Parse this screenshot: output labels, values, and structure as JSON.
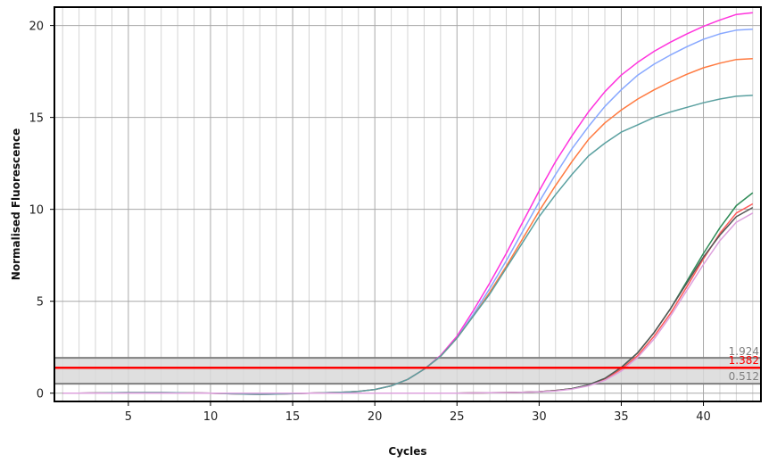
{
  "chart_data": {
    "type": "line",
    "xlabel": "Cycles",
    "ylabel": "Normalised Fluorescence",
    "xlim": [
      0.5,
      43.5
    ],
    "ylim": [
      -0.45,
      21
    ],
    "x_ticks": [
      5,
      10,
      15,
      20,
      25,
      30,
      35,
      40
    ],
    "y_ticks": [
      0,
      5,
      10,
      15,
      20
    ],
    "grid": true,
    "threshold_band": {
      "upper": {
        "value": 1.924,
        "label": "1.924",
        "color": "#7f7f7f"
      },
      "threshold": {
        "value": 1.382,
        "label": "1.382",
        "color": "#ff0000"
      },
      "lower": {
        "value": 0.512,
        "label": "0.512",
        "color": "#7f7f7f"
      },
      "band_fill": "#d9d9d9"
    },
    "x": [
      1,
      2,
      3,
      4,
      5,
      6,
      7,
      8,
      9,
      10,
      11,
      12,
      13,
      14,
      15,
      16,
      17,
      18,
      19,
      20,
      21,
      22,
      23,
      24,
      25,
      26,
      27,
      28,
      29,
      30,
      31,
      32,
      33,
      34,
      35,
      36,
      37,
      38,
      39,
      40,
      41,
      42,
      43
    ],
    "series": [
      {
        "color": "#ff33dd",
        "values": [
          0.0,
          0.0,
          0.01,
          0.02,
          0.03,
          0.03,
          0.03,
          0.02,
          0.01,
          0.0,
          -0.03,
          -0.05,
          -0.06,
          -0.05,
          -0.03,
          0.0,
          0.02,
          0.05,
          0.1,
          0.2,
          0.4,
          0.75,
          1.3,
          2.05,
          3.1,
          4.5,
          6.0,
          7.6,
          9.3,
          11.0,
          12.6,
          14.0,
          15.3,
          16.4,
          17.3,
          18.0,
          18.6,
          19.1,
          19.55,
          19.95,
          20.3,
          20.6,
          20.7
        ]
      },
      {
        "color": "#88a8ff",
        "values": [
          0.0,
          0.0,
          0.01,
          0.02,
          0.03,
          0.03,
          0.03,
          0.02,
          0.01,
          0.0,
          -0.03,
          -0.05,
          -0.06,
          -0.05,
          -0.03,
          0.0,
          0.02,
          0.05,
          0.1,
          0.2,
          0.4,
          0.75,
          1.3,
          2.0,
          3.0,
          4.3,
          5.7,
          7.2,
          8.8,
          10.4,
          11.9,
          13.3,
          14.5,
          15.6,
          16.5,
          17.3,
          17.9,
          18.4,
          18.85,
          19.25,
          19.55,
          19.75,
          19.8
        ]
      },
      {
        "color": "#ff7a40",
        "values": [
          0.0,
          0.0,
          0.01,
          0.02,
          0.03,
          0.03,
          0.03,
          0.02,
          0.01,
          0.0,
          -0.03,
          -0.05,
          -0.06,
          -0.05,
          -0.03,
          0.0,
          0.02,
          0.05,
          0.1,
          0.2,
          0.4,
          0.75,
          1.3,
          2.0,
          3.0,
          4.2,
          5.5,
          6.9,
          8.4,
          9.9,
          11.3,
          12.6,
          13.8,
          14.7,
          15.4,
          16.0,
          16.5,
          16.95,
          17.35,
          17.7,
          17.95,
          18.15,
          18.2
        ]
      },
      {
        "color": "#5aa0a0",
        "values": [
          0.0,
          0.0,
          0.01,
          0.02,
          0.03,
          0.03,
          0.03,
          0.02,
          0.01,
          0.0,
          -0.03,
          -0.05,
          -0.06,
          -0.05,
          -0.03,
          0.0,
          0.02,
          0.05,
          0.1,
          0.2,
          0.4,
          0.75,
          1.3,
          2.0,
          3.0,
          4.2,
          5.4,
          6.8,
          8.2,
          9.6,
          10.8,
          11.9,
          12.9,
          13.6,
          14.2,
          14.6,
          15.0,
          15.3,
          15.55,
          15.8,
          16.0,
          16.15,
          16.2
        ]
      },
      {
        "color": "#2e8b57",
        "values": [
          0.0,
          0.0,
          0.0,
          0.0,
          0.0,
          0.0,
          0.0,
          0.0,
          0.0,
          0.0,
          0.0,
          0.0,
          0.0,
          0.0,
          0.0,
          0.0,
          0.0,
          0.0,
          0.0,
          0.0,
          0.0,
          0.0,
          0.0,
          0.0,
          0.0,
          0.01,
          0.02,
          0.03,
          0.05,
          0.08,
          0.14,
          0.25,
          0.45,
          0.8,
          1.4,
          2.2,
          3.3,
          4.6,
          6.1,
          7.6,
          9.0,
          10.2,
          10.9
        ]
      },
      {
        "color": "#ff5a5a",
        "values": [
          0.0,
          0.0,
          0.0,
          0.0,
          0.0,
          0.0,
          0.0,
          0.0,
          0.0,
          0.0,
          0.0,
          0.0,
          0.0,
          0.0,
          0.0,
          0.0,
          0.0,
          0.0,
          0.0,
          0.0,
          0.0,
          0.0,
          0.0,
          0.0,
          0.0,
          0.01,
          0.02,
          0.03,
          0.05,
          0.08,
          0.14,
          0.24,
          0.42,
          0.75,
          1.3,
          2.05,
          3.1,
          4.35,
          5.8,
          7.3,
          8.7,
          9.8,
          10.3
        ]
      },
      {
        "color": "#555555",
        "values": [
          0.0,
          0.0,
          0.0,
          0.0,
          0.0,
          0.0,
          0.0,
          0.0,
          0.0,
          0.0,
          0.0,
          0.0,
          0.0,
          0.0,
          0.0,
          0.0,
          0.0,
          0.0,
          0.0,
          0.0,
          0.0,
          0.0,
          0.0,
          0.0,
          0.0,
          0.01,
          0.02,
          0.03,
          0.05,
          0.08,
          0.14,
          0.25,
          0.45,
          0.8,
          1.4,
          2.2,
          3.3,
          4.6,
          6.0,
          7.4,
          8.6,
          9.6,
          10.1
        ]
      },
      {
        "color": "#dda0dd",
        "values": [
          0.0,
          0.0,
          0.0,
          0.0,
          0.0,
          0.0,
          0.0,
          0.0,
          0.0,
          0.0,
          0.0,
          0.0,
          0.0,
          0.0,
          0.0,
          0.0,
          0.0,
          0.0,
          0.0,
          0.0,
          0.0,
          0.0,
          0.0,
          0.0,
          0.0,
          0.01,
          0.02,
          0.03,
          0.05,
          0.07,
          0.12,
          0.22,
          0.4,
          0.7,
          1.2,
          1.95,
          2.95,
          4.2,
          5.6,
          7.0,
          8.3,
          9.3,
          9.8
        ]
      }
    ]
  }
}
